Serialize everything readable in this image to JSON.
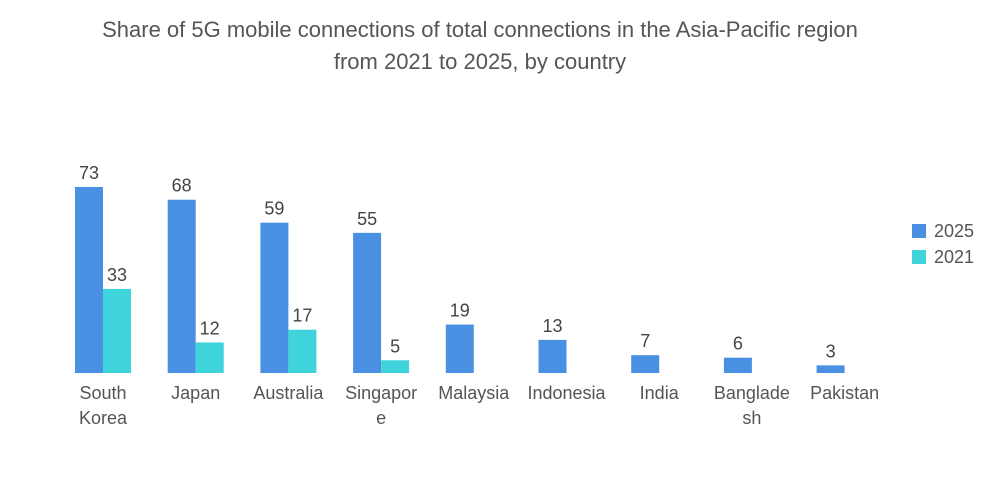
{
  "chart_data": {
    "type": "bar",
    "title_lines": [
      "Share of 5G mobile connections of total connections in the Asia-Pacific region",
      "from 2021 to 2025, by country"
    ],
    "categories": [
      [
        "South",
        "Korea"
      ],
      [
        "Japan"
      ],
      [
        "Australia"
      ],
      [
        "Singapor",
        "e"
      ],
      [
        "Malaysia"
      ],
      [
        "Indonesia"
      ],
      [
        "India"
      ],
      [
        "Banglade",
        "sh"
      ],
      [
        "Pakistan"
      ]
    ],
    "series": [
      {
        "name": "2025",
        "color": "#4a90e2",
        "values": [
          73,
          68,
          59,
          55,
          19,
          13,
          7,
          6,
          3
        ]
      },
      {
        "name": "2021",
        "color": "#3fd4dc",
        "values": [
          33,
          12,
          17,
          5,
          null,
          null,
          null,
          null,
          null
        ]
      }
    ],
    "ylim": [
      0,
      80
    ],
    "legend_position": "right",
    "grid": false
  }
}
